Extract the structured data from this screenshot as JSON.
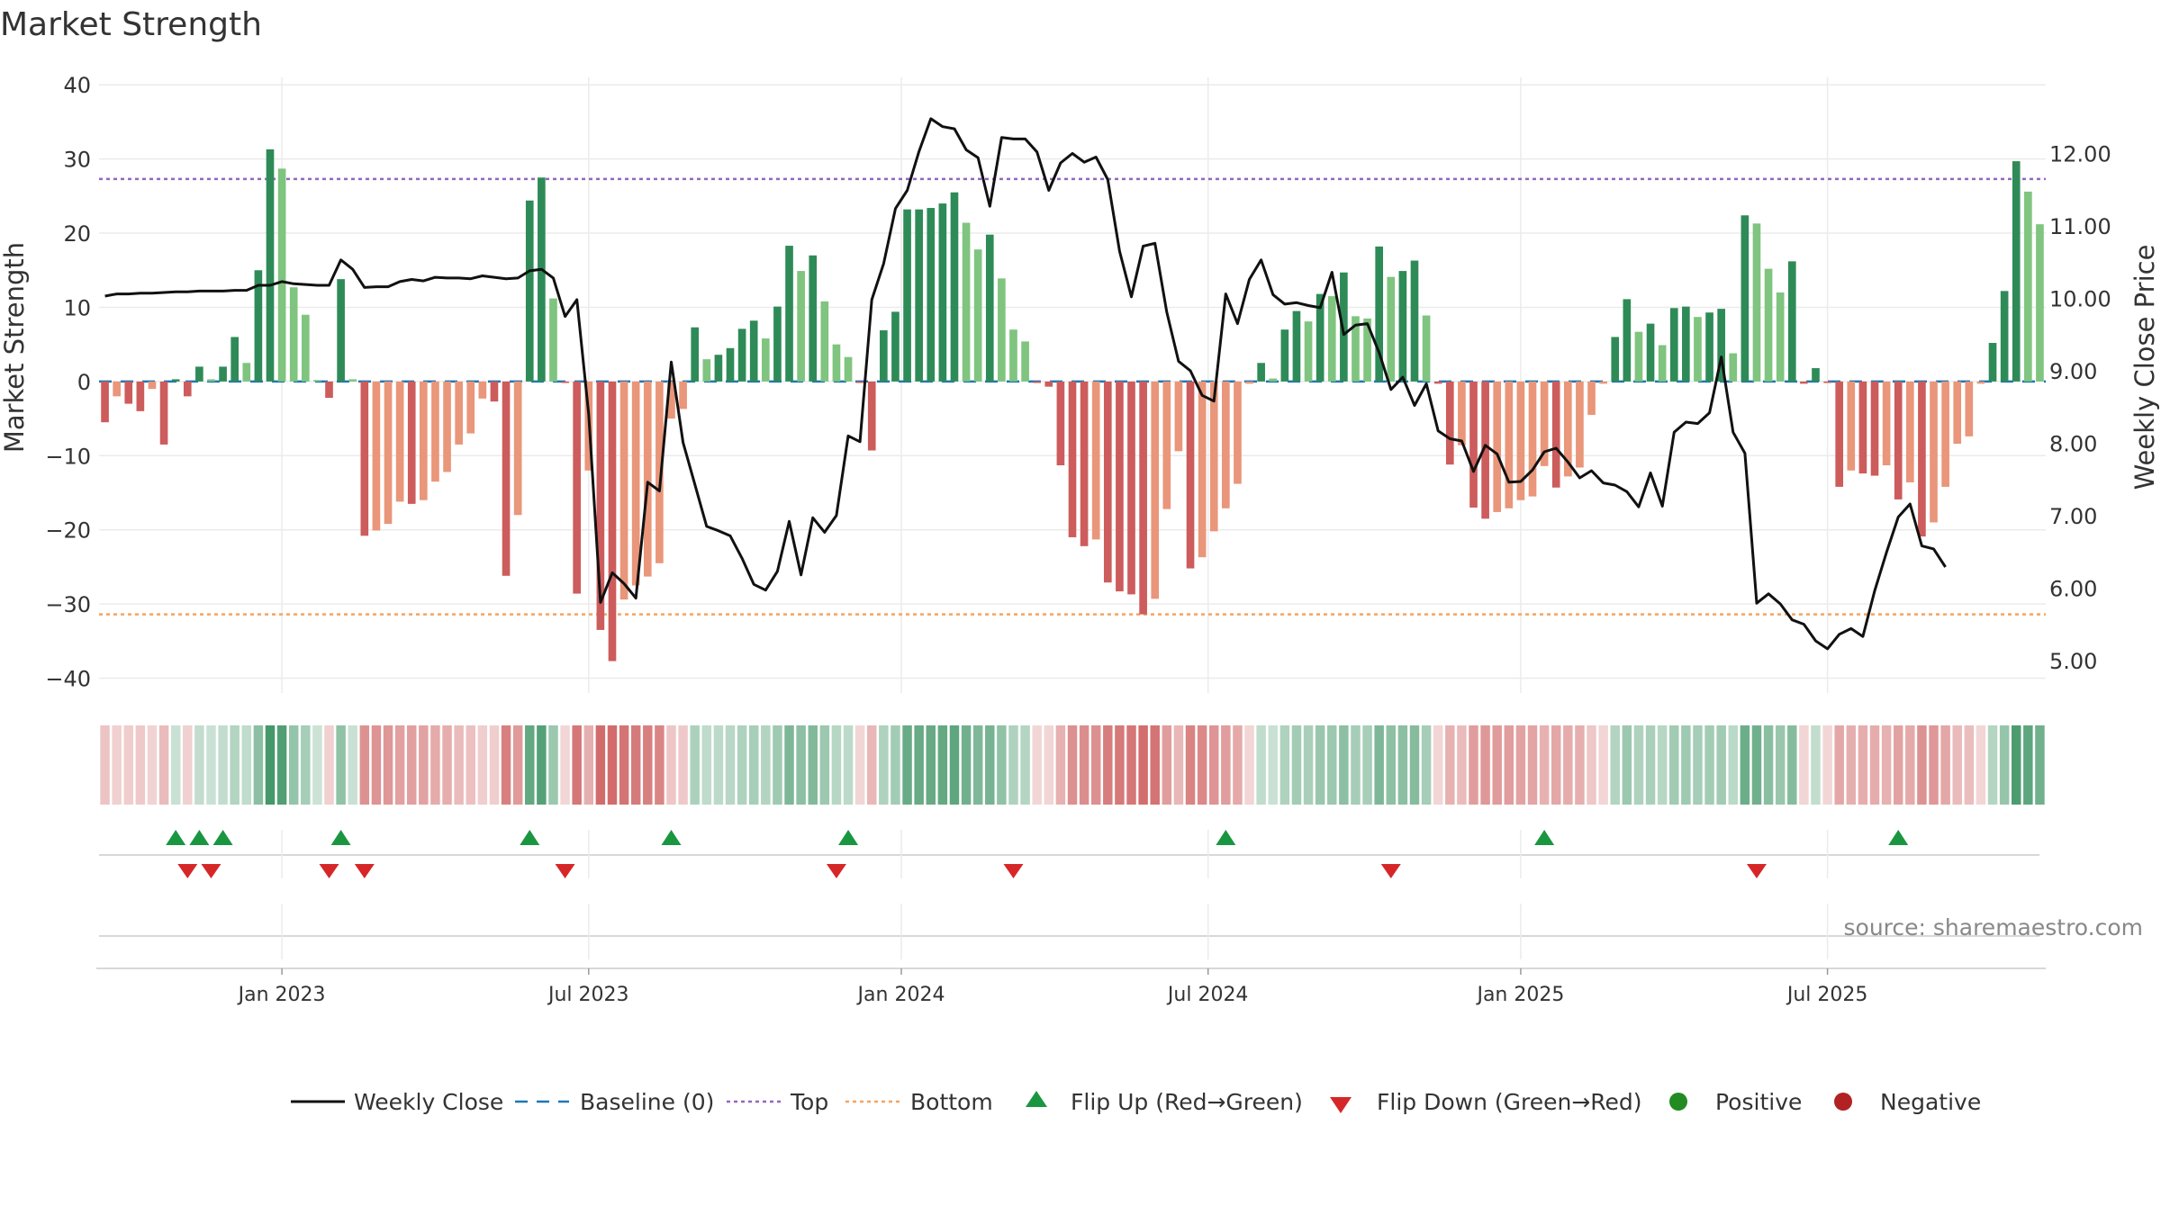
{
  "chart_data": {
    "type": "bar",
    "title": "Market Strength",
    "ylabel_left": "Market Strength",
    "ylabel_right": "Weekly Close Price",
    "ylim_left": [
      -42,
      41
    ],
    "ylim_right": [
      4.55,
      13.05
    ],
    "left_ticks": [
      40,
      30,
      20,
      10,
      0,
      -10,
      -20,
      -30,
      -40
    ],
    "left_tick_labels": [
      "40",
      "30",
      "20",
      "10",
      "0",
      "−10",
      "−20",
      "−30",
      "−40"
    ],
    "right_ticks": [
      12,
      11,
      10,
      9,
      8,
      7,
      6,
      5
    ],
    "right_tick_labels": [
      "12.00",
      "11.00",
      "10.00",
      "9.00",
      "8.00",
      "7.00",
      "6.00",
      "5.00"
    ],
    "x_tick_labels": [
      "Jan 2023",
      "Jul 2023",
      "Jan 2024",
      "Jul 2024",
      "Jan 2025",
      "Jul 2025"
    ],
    "x_tick_weeks": [
      15,
      41,
      67.5,
      93.5,
      120,
      146
    ],
    "top_level": 27.3,
    "bottom_level": -31.4,
    "colors": {
      "pos_dark": "#2e8b57",
      "pos_light": "#7fc47f",
      "neg_dark": "#cd5c5c",
      "neg_light": "#e9967a",
      "top_line": "#9467bd",
      "bottom_line": "#f4a460",
      "baseline": "#1f77b4",
      "close_line": "#111111",
      "flip_up": "#1a9641",
      "flip_down": "#d62728",
      "positive": "#228b22",
      "negative": "#b22222"
    },
    "strength": [
      -5.5,
      -2,
      -3,
      -4,
      -1,
      -8.5,
      0.3,
      -2,
      2,
      0.3,
      2,
      6,
      2.5,
      15,
      31.3,
      28.7,
      12.7,
      9,
      0.2,
      -2.2,
      13.8,
      0.3,
      -20.8,
      -20.1,
      -19.2,
      -16.2,
      -16.5,
      -16,
      -13.5,
      -12.2,
      -8.5,
      -7,
      -2.3,
      -2.7,
      -26.2,
      -18,
      24.4,
      27.5,
      11.2,
      -0.2,
      -28.6,
      -12,
      -33.5,
      -37.7,
      -29.4,
      -27.5,
      -26.3,
      -24.5,
      -5,
      -3.7,
      7.3,
      3,
      3.6,
      4.5,
      7.1,
      8.2,
      5.8,
      10.1,
      18.3,
      14.9,
      17,
      10.8,
      5,
      3.3,
      -0.2,
      -9.3,
      6.9,
      9.4,
      23.2,
      23.2,
      23.4,
      24,
      25.5,
      21.4,
      17.8,
      19.8,
      13.9,
      7,
      5.4,
      -0.2,
      -0.7,
      -11.3,
      -21,
      -22.2,
      -21.3,
      -27.1,
      -28.3,
      -28.7,
      -31.4,
      -29.3,
      -17.2,
      -9.4,
      -25.2,
      -23.7,
      -20.2,
      -17.1,
      -13.8,
      -0.3,
      2.5,
      0.4,
      7,
      9.5,
      8.1,
      11.8,
      11.5,
      14.7,
      8.8,
      8.5,
      18.2,
      14.1,
      14.9,
      16.3,
      8.9,
      -0.3,
      -11.2,
      -8.6,
      -17,
      -18.5,
      -17.6,
      -17.1,
      -16,
      -15.5,
      -11.4,
      -14.3,
      -12.8,
      -11.6,
      -4.5,
      -0.3,
      6,
      11.1,
      6.7,
      7.8,
      4.9,
      9.9,
      10.1,
      8.7,
      9.3,
      9.8,
      3.8,
      22.4,
      21.3,
      15.2,
      12,
      16.2,
      -0.3,
      1.8,
      -0.2,
      -14.2,
      -12,
      -12.4,
      -12.7,
      -11.3,
      -15.9,
      -13.6,
      -20.9,
      -19,
      -14.2,
      -8.4,
      -7.4,
      -0.3,
      5.2,
      12.2,
      29.7,
      25.6,
      21.2
    ],
    "weekly_close": [
      10.03,
      10.06,
      10.06,
      10.07,
      10.07,
      10.08,
      10.09,
      10.09,
      10.1,
      10.1,
      10.1,
      10.11,
      10.11,
      10.18,
      10.18,
      10.23,
      10.2,
      10.19,
      10.18,
      10.18,
      10.53,
      10.4,
      10.15,
      10.16,
      10.16,
      10.23,
      10.26,
      10.24,
      10.29,
      10.28,
      10.28,
      10.27,
      10.31,
      10.29,
      10.27,
      10.28,
      10.38,
      10.4,
      10.28,
      9.75,
      9.98,
      8.4,
      5.8,
      6.21,
      6.06,
      5.86,
      7.46,
      7.34,
      9.12,
      8.01,
      7.43,
      6.85,
      6.79,
      6.72,
      6.41,
      6.05,
      5.97,
      6.23,
      6.92,
      6.18,
      6.97,
      6.77,
      7.0,
      8.1,
      8.02,
      9.98,
      10.48,
      11.24,
      11.49,
      12.03,
      12.48,
      12.37,
      12.34,
      12.05,
      11.94,
      11.27,
      12.22,
      12.2,
      12.2,
      12.02,
      11.49,
      11.87,
      12.0,
      11.88,
      11.95,
      11.64,
      10.65,
      10.02,
      10.72,
      10.76,
      9.81,
      9.13,
      9.0,
      8.66,
      8.58,
      10.06,
      9.65,
      10.26,
      10.53,
      10.05,
      9.92,
      9.94,
      9.9,
      9.87,
      10.36,
      9.5,
      9.63,
      9.65,
      9.25,
      8.74,
      8.91,
      8.52,
      8.82,
      8.17,
      8.06,
      8.03,
      7.61,
      7.97,
      7.85,
      7.46,
      7.47,
      7.63,
      7.88,
      7.93,
      7.74,
      7.52,
      7.62,
      7.45,
      7.42,
      7.33,
      7.12,
      7.59,
      7.13,
      8.15,
      8.29,
      8.27,
      8.42,
      9.19,
      8.15,
      7.86,
      5.79,
      5.92,
      5.78,
      5.56,
      5.5,
      5.27,
      5.16,
      5.36,
      5.44,
      5.33,
      5.96,
      6.49,
      6.98,
      7.16,
      6.58,
      6.54,
      6.29
    ],
    "flip_up_weeks": [
      6,
      8,
      10,
      20,
      36,
      48,
      63,
      95,
      122,
      152
    ],
    "flip_down_weeks": [
      7,
      9,
      19,
      22,
      39,
      62,
      77,
      109,
      140
    ]
  },
  "legend": {
    "weekly_close": "Weekly Close",
    "baseline": "Baseline (0)",
    "top": "Top",
    "bottom": "Bottom",
    "flip_up": "Flip Up (Red→Green)",
    "flip_down": "Flip Down (Green→Red)",
    "positive": "Positive",
    "negative": "Negative"
  },
  "source_text": "source: sharemaestro.com"
}
